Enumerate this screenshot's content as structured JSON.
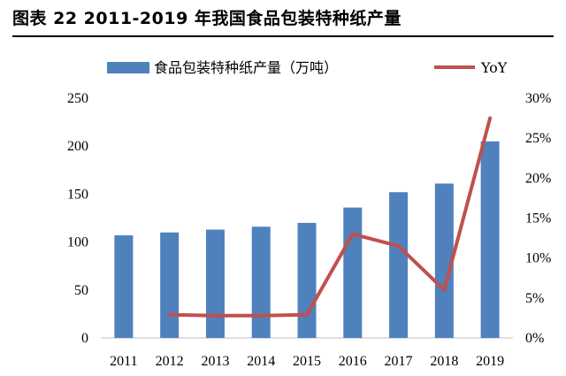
{
  "title": "图表 22 2011-2019 年我国食品包装特种纸产量",
  "chart_data": {
    "type": "bar+line",
    "categories": [
      "2011",
      "2012",
      "2013",
      "2014",
      "2015",
      "2016",
      "2017",
      "2018",
      "2019"
    ],
    "series": [
      {
        "name": "食品包装特种纸产量（万吨）",
        "type": "bar",
        "axis": "left",
        "values": [
          107,
          110,
          113,
          116,
          120,
          136,
          152,
          161,
          205
        ],
        "color": "#4f81bd"
      },
      {
        "name": "YoY",
        "type": "line",
        "axis": "right",
        "values": [
          null,
          0.029,
          0.028,
          0.028,
          0.029,
          0.13,
          0.115,
          0.06,
          0.275
        ],
        "color": "#c0504d"
      }
    ],
    "y_left": {
      "min": 0,
      "max": 250,
      "step": 50,
      "ticks": [
        "0",
        "50",
        "100",
        "150",
        "200",
        "250"
      ]
    },
    "y_right": {
      "min": 0,
      "max": 0.3,
      "step": 0.05,
      "ticks": [
        "0%",
        "5%",
        "10%",
        "15%",
        "20%",
        "25%",
        "30%"
      ]
    },
    "legend_position": "top",
    "grid": false
  }
}
